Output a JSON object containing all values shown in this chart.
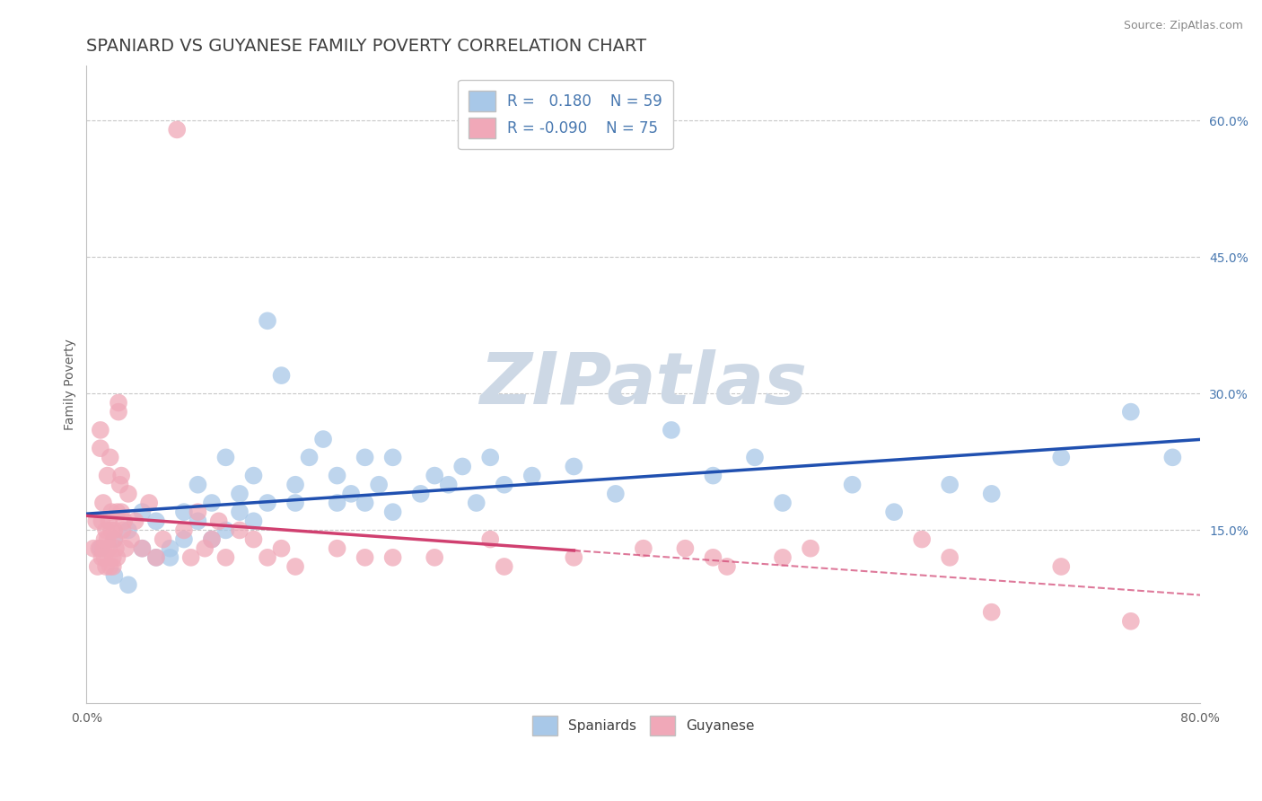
{
  "title": "SPANIARD VS GUYANESE FAMILY POVERTY CORRELATION CHART",
  "source_text": "Source: ZipAtlas.com",
  "ylabel": "Family Poverty",
  "xlim": [
    0.0,
    0.8
  ],
  "ylim": [
    -0.04,
    0.66
  ],
  "xticks": [
    0.0,
    0.1,
    0.2,
    0.3,
    0.4,
    0.5,
    0.6,
    0.7,
    0.8
  ],
  "xticklabels": [
    "0.0%",
    "",
    "",
    "",
    "",
    "",
    "",
    "",
    "80.0%"
  ],
  "yticks_right": [
    0.0,
    0.15,
    0.3,
    0.45,
    0.6
  ],
  "ytick_right_labels": [
    "",
    "15.0%",
    "30.0%",
    "45.0%",
    "60.0%"
  ],
  "grid_color": "#c8c8c8",
  "background_color": "#ffffff",
  "spaniard_color": "#a8c8e8",
  "guyanese_color": "#f0a8b8",
  "spaniard_line_color": "#2050b0",
  "guyanese_line_color": "#d04070",
  "legend_r_spaniard": "0.180",
  "legend_n_spaniard": "59",
  "legend_r_guyanese": "-0.090",
  "legend_n_guyanese": "75",
  "watermark": "ZIPatlas",
  "watermark_color": "#cdd8e5",
  "title_color": "#404040",
  "title_fontsize": 14,
  "label_fontsize": 10,
  "tick_fontsize": 10,
  "right_tick_color": "#4878b0",
  "spaniard_data": [
    [
      0.01,
      0.13
    ],
    [
      0.02,
      0.1
    ],
    [
      0.02,
      0.14
    ],
    [
      0.03,
      0.09
    ],
    [
      0.03,
      0.15
    ],
    [
      0.04,
      0.13
    ],
    [
      0.04,
      0.17
    ],
    [
      0.05,
      0.12
    ],
    [
      0.05,
      0.16
    ],
    [
      0.06,
      0.13
    ],
    [
      0.06,
      0.12
    ],
    [
      0.07,
      0.17
    ],
    [
      0.07,
      0.14
    ],
    [
      0.08,
      0.16
    ],
    [
      0.08,
      0.2
    ],
    [
      0.09,
      0.14
    ],
    [
      0.09,
      0.18
    ],
    [
      0.1,
      0.23
    ],
    [
      0.1,
      0.15
    ],
    [
      0.11,
      0.17
    ],
    [
      0.11,
      0.19
    ],
    [
      0.12,
      0.16
    ],
    [
      0.12,
      0.21
    ],
    [
      0.13,
      0.18
    ],
    [
      0.13,
      0.38
    ],
    [
      0.14,
      0.32
    ],
    [
      0.15,
      0.18
    ],
    [
      0.15,
      0.2
    ],
    [
      0.16,
      0.23
    ],
    [
      0.17,
      0.25
    ],
    [
      0.18,
      0.21
    ],
    [
      0.18,
      0.18
    ],
    [
      0.19,
      0.19
    ],
    [
      0.2,
      0.23
    ],
    [
      0.2,
      0.18
    ],
    [
      0.21,
      0.2
    ],
    [
      0.22,
      0.23
    ],
    [
      0.22,
      0.17
    ],
    [
      0.24,
      0.19
    ],
    [
      0.25,
      0.21
    ],
    [
      0.26,
      0.2
    ],
    [
      0.27,
      0.22
    ],
    [
      0.28,
      0.18
    ],
    [
      0.29,
      0.23
    ],
    [
      0.3,
      0.2
    ],
    [
      0.32,
      0.21
    ],
    [
      0.35,
      0.22
    ],
    [
      0.38,
      0.19
    ],
    [
      0.42,
      0.26
    ],
    [
      0.45,
      0.21
    ],
    [
      0.48,
      0.23
    ],
    [
      0.5,
      0.18
    ],
    [
      0.55,
      0.2
    ],
    [
      0.58,
      0.17
    ],
    [
      0.62,
      0.2
    ],
    [
      0.65,
      0.19
    ],
    [
      0.7,
      0.23
    ],
    [
      0.75,
      0.28
    ],
    [
      0.78,
      0.23
    ]
  ],
  "guyanese_data": [
    [
      0.005,
      0.13
    ],
    [
      0.007,
      0.16
    ],
    [
      0.008,
      0.11
    ],
    [
      0.009,
      0.13
    ],
    [
      0.01,
      0.24
    ],
    [
      0.01,
      0.26
    ],
    [
      0.011,
      0.12
    ],
    [
      0.011,
      0.16
    ],
    [
      0.012,
      0.13
    ],
    [
      0.012,
      0.18
    ],
    [
      0.013,
      0.14
    ],
    [
      0.013,
      0.12
    ],
    [
      0.014,
      0.15
    ],
    [
      0.014,
      0.11
    ],
    [
      0.015,
      0.14
    ],
    [
      0.015,
      0.21
    ],
    [
      0.016,
      0.13
    ],
    [
      0.016,
      0.16
    ],
    [
      0.017,
      0.11
    ],
    [
      0.017,
      0.23
    ],
    [
      0.018,
      0.15
    ],
    [
      0.018,
      0.17
    ],
    [
      0.019,
      0.11
    ],
    [
      0.019,
      0.12
    ],
    [
      0.02,
      0.15
    ],
    [
      0.02,
      0.14
    ],
    [
      0.021,
      0.13
    ],
    [
      0.022,
      0.17
    ],
    [
      0.022,
      0.12
    ],
    [
      0.023,
      0.29
    ],
    [
      0.023,
      0.28
    ],
    [
      0.024,
      0.2
    ],
    [
      0.025,
      0.21
    ],
    [
      0.025,
      0.17
    ],
    [
      0.026,
      0.15
    ],
    [
      0.027,
      0.16
    ],
    [
      0.028,
      0.13
    ],
    [
      0.03,
      0.19
    ],
    [
      0.032,
      0.14
    ],
    [
      0.035,
      0.16
    ],
    [
      0.04,
      0.13
    ],
    [
      0.045,
      0.18
    ],
    [
      0.05,
      0.12
    ],
    [
      0.055,
      0.14
    ],
    [
      0.065,
      0.59
    ],
    [
      0.07,
      0.15
    ],
    [
      0.075,
      0.12
    ],
    [
      0.08,
      0.17
    ],
    [
      0.085,
      0.13
    ],
    [
      0.09,
      0.14
    ],
    [
      0.095,
      0.16
    ],
    [
      0.1,
      0.12
    ],
    [
      0.11,
      0.15
    ],
    [
      0.12,
      0.14
    ],
    [
      0.13,
      0.12
    ],
    [
      0.14,
      0.13
    ],
    [
      0.15,
      0.11
    ],
    [
      0.18,
      0.13
    ],
    [
      0.2,
      0.12
    ],
    [
      0.22,
      0.12
    ],
    [
      0.25,
      0.12
    ],
    [
      0.29,
      0.14
    ],
    [
      0.3,
      0.11
    ],
    [
      0.35,
      0.12
    ],
    [
      0.4,
      0.13
    ],
    [
      0.43,
      0.13
    ],
    [
      0.45,
      0.12
    ],
    [
      0.46,
      0.11
    ],
    [
      0.5,
      0.12
    ],
    [
      0.52,
      0.13
    ],
    [
      0.6,
      0.14
    ],
    [
      0.62,
      0.12
    ],
    [
      0.65,
      0.06
    ],
    [
      0.7,
      0.11
    ],
    [
      0.75,
      0.05
    ]
  ]
}
